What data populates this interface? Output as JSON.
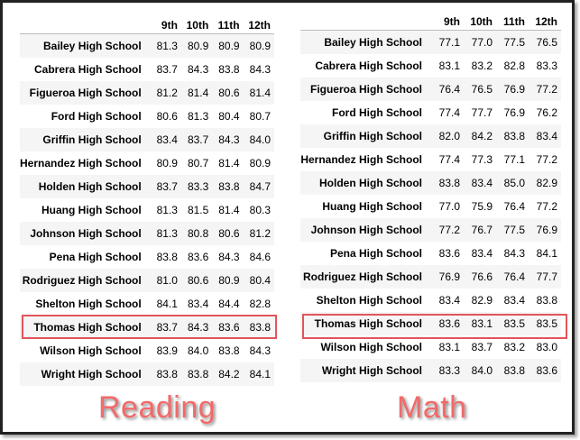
{
  "reading": {
    "caption": "Reading",
    "columns": [
      "9th",
      "10th",
      "11th",
      "12th"
    ],
    "rows": [
      {
        "school": "Bailey High School",
        "values": [
          "81.3",
          "80.9",
          "80.9",
          "80.9"
        ]
      },
      {
        "school": "Cabrera High School",
        "values": [
          "83.7",
          "84.3",
          "83.8",
          "84.3"
        ]
      },
      {
        "school": "Figueroa High School",
        "values": [
          "81.2",
          "81.4",
          "80.6",
          "81.4"
        ]
      },
      {
        "school": "Ford High School",
        "values": [
          "80.6",
          "81.3",
          "80.4",
          "80.7"
        ]
      },
      {
        "school": "Griffin High School",
        "values": [
          "83.4",
          "83.7",
          "84.3",
          "84.0"
        ]
      },
      {
        "school": "Hernandez High School",
        "values": [
          "80.9",
          "80.7",
          "81.4",
          "80.9"
        ]
      },
      {
        "school": "Holden High School",
        "values": [
          "83.7",
          "83.3",
          "83.8",
          "84.7"
        ]
      },
      {
        "school": "Huang High School",
        "values": [
          "81.3",
          "81.5",
          "81.4",
          "80.3"
        ]
      },
      {
        "school": "Johnson High School",
        "values": [
          "81.3",
          "80.8",
          "80.6",
          "81.2"
        ]
      },
      {
        "school": "Pena High School",
        "values": [
          "83.8",
          "83.6",
          "84.3",
          "84.6"
        ]
      },
      {
        "school": "Rodriguez High School",
        "values": [
          "81.0",
          "80.6",
          "80.9",
          "80.4"
        ]
      },
      {
        "school": "Shelton High School",
        "values": [
          "84.1",
          "83.4",
          "84.4",
          "82.8"
        ]
      },
      {
        "school": "Thomas High School",
        "values": [
          "83.7",
          "84.3",
          "83.6",
          "83.8"
        ]
      },
      {
        "school": "Wilson High School",
        "values": [
          "83.9",
          "84.0",
          "83.8",
          "84.3"
        ]
      },
      {
        "school": "Wright High School",
        "values": [
          "83.8",
          "83.8",
          "84.2",
          "84.1"
        ]
      }
    ]
  },
  "math": {
    "caption": "Math",
    "columns": [
      "9th",
      "10th",
      "11th",
      "12th"
    ],
    "rows": [
      {
        "school": "Bailey High School",
        "values": [
          "77.1",
          "77.0",
          "77.5",
          "76.5"
        ]
      },
      {
        "school": "Cabrera High School",
        "values": [
          "83.1",
          "83.2",
          "82.8",
          "83.3"
        ]
      },
      {
        "school": "Figueroa High School",
        "values": [
          "76.4",
          "76.5",
          "76.9",
          "77.2"
        ]
      },
      {
        "school": "Ford High School",
        "values": [
          "77.4",
          "77.7",
          "76.9",
          "76.2"
        ]
      },
      {
        "school": "Griffin High School",
        "values": [
          "82.0",
          "84.2",
          "83.8",
          "83.4"
        ]
      },
      {
        "school": "Hernandez High School",
        "values": [
          "77.4",
          "77.3",
          "77.1",
          "77.2"
        ]
      },
      {
        "school": "Holden High School",
        "values": [
          "83.8",
          "83.4",
          "85.0",
          "82.9"
        ]
      },
      {
        "school": "Huang High School",
        "values": [
          "77.0",
          "75.9",
          "76.4",
          "77.2"
        ]
      },
      {
        "school": "Johnson High School",
        "values": [
          "77.2",
          "76.7",
          "77.5",
          "76.9"
        ]
      },
      {
        "school": "Pena High School",
        "values": [
          "83.6",
          "83.4",
          "84.3",
          "84.1"
        ]
      },
      {
        "school": "Rodriguez High School",
        "values": [
          "76.9",
          "76.6",
          "76.4",
          "77.7"
        ]
      },
      {
        "school": "Shelton High School",
        "values": [
          "83.4",
          "82.9",
          "83.4",
          "83.8"
        ]
      },
      {
        "school": "Thomas High School",
        "values": [
          "83.6",
          "83.1",
          "83.5",
          "83.5"
        ]
      },
      {
        "school": "Wilson High School",
        "values": [
          "83.1",
          "83.7",
          "83.2",
          "83.0"
        ]
      },
      {
        "school": "Wright High School",
        "values": [
          "83.3",
          "84.0",
          "83.8",
          "83.6"
        ]
      }
    ]
  },
  "colors": {
    "highlight_border": "#e0555a",
    "caption_text": "#f26a6a"
  }
}
